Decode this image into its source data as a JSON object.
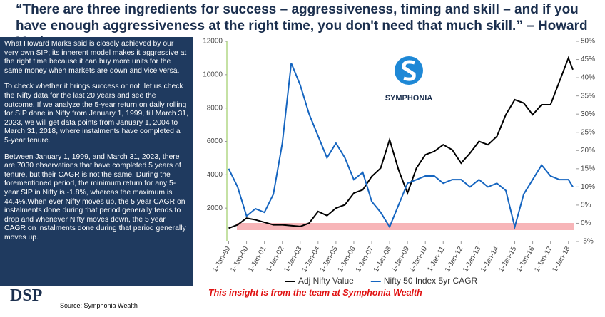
{
  "header": {
    "quote": "“There are three ingredients for success – aggressiveness, timing and skill – and if you have enough aggressiveness at the right time, you don't need that much skill.” – Howard Marks"
  },
  "left_panel": {
    "paragraphs": [
      "What Howard Marks said is closely achieved by our very own SIP; its inherent model makes it aggressive at the right time because it can buy more units for the same money when markets are down and vice versa.",
      "To check whether it brings success or not, let us check the Nifty data for the last 20 years and see the outcome. If we analyze the 5-year return on daily rolling for SIP done in Nifty from January 1, 1999, till March 31, 2023, we will get data points from January 1, 2004 to March 31, 2018, where instalments have completed a 5-year tenure.",
      "Between January 1, 1999, and March 31, 2023, there are 7030 observations that have completed 5 years of tenure, but their CAGR is not the same. During the forementioned period, the minimum return for any 5-year SIP in Nifty is -1.8%, whereas the maximum is 44.4%.When ever Nifty moves up, the 5 year CAGR on instalments done during that period generally tends to drop and whenever Nifty moves down, the 5 year CAGR on instalments done during that period generally moves up."
    ]
  },
  "chart_data": {
    "type": "line",
    "x": [
      1999,
      1999.5,
      2000,
      2000.5,
      2001,
      2001.5,
      2002,
      2002.5,
      2003,
      2003.5,
      2004,
      2004.5,
      2005,
      2005.5,
      2006,
      2006.5,
      2007,
      2007.5,
      2008,
      2008.5,
      2009,
      2009.5,
      2010,
      2010.5,
      2011,
      2011.5,
      2012,
      2012.5,
      2013,
      2013.5,
      2014,
      2014.5,
      2015,
      2015.5,
      2016,
      2016.5,
      2017,
      2017.5,
      2018,
      2018.25
    ],
    "series": [
      {
        "name": "Adj Nifty Value",
        "color": "#000000",
        "values": [
          800,
          1000,
          1400,
          1300,
          1150,
          1000,
          1000,
          950,
          900,
          1100,
          1800,
          1550,
          2000,
          2200,
          2900,
          3100,
          3900,
          4400,
          6100,
          4300,
          2900,
          4400,
          5200,
          5400,
          5800,
          5500,
          4700,
          5300,
          6000,
          5800,
          6300,
          7600,
          8500,
          8300,
          7600,
          8200,
          8200,
          9600,
          11000,
          10300
        ]
      },
      {
        "name": "Nifty 50 Index 5yr CAGR",
        "color": "#1565c0",
        "axis": "y2",
        "values": [
          15,
          10,
          2,
          4,
          3,
          8,
          22,
          44,
          38,
          30,
          24,
          18,
          22,
          18,
          12,
          14,
          6,
          3,
          -1,
          5,
          11,
          12,
          13,
          13,
          11,
          12,
          12,
          10,
          12,
          10,
          11,
          9,
          -1,
          8,
          12,
          16,
          13,
          12,
          12,
          10
        ]
      }
    ],
    "xlim": [
      1998.9,
      2018.45
    ],
    "xticks": [
      {
        "value": 1999,
        "label": "1-Jan-99"
      },
      {
        "value": 2000,
        "label": "1-Jan-00"
      },
      {
        "value": 2001,
        "label": "1-Jan-01"
      },
      {
        "value": 2002,
        "label": "1-Jan-02"
      },
      {
        "value": 2003,
        "label": "1-Jan-03"
      },
      {
        "value": 2004,
        "label": "1-Jan-04"
      },
      {
        "value": 2005,
        "label": "1-Jan-05"
      },
      {
        "value": 2006,
        "label": "1-Jan-06"
      },
      {
        "value": 2007,
        "label": "1-Jan-07"
      },
      {
        "value": 2008,
        "label": "1-Jan-08"
      },
      {
        "value": 2009,
        "label": "1-Jan-09"
      },
      {
        "value": 2010,
        "label": "1-Jan-10"
      },
      {
        "value": 2011,
        "label": "1-Jan-11"
      },
      {
        "value": 2012,
        "label": "1-Jan-12"
      },
      {
        "value": 2013,
        "label": "1-Jan-13"
      },
      {
        "value": 2014,
        "label": "1-Jan-14"
      },
      {
        "value": 2015,
        "label": "1-Jan-15"
      },
      {
        "value": 2016,
        "label": "1-Jan-16"
      },
      {
        "value": 2017,
        "label": "1-Jan-17"
      },
      {
        "value": 2018,
        "label": "1-Jan-18"
      }
    ],
    "ylim": [
      0,
      12000
    ],
    "yticks": [
      2000,
      4000,
      6000,
      8000,
      10000,
      12000
    ],
    "y2lim": [
      -5,
      50
    ],
    "y2ticks": [
      {
        "value": -5,
        "label": "-5%"
      },
      {
        "value": 0,
        "label": "0%"
      },
      {
        "value": 5,
        "label": "5%"
      },
      {
        "value": 10,
        "label": "10%"
      },
      {
        "value": 15,
        "label": "15%"
      },
      {
        "value": 20,
        "label": "20%"
      },
      {
        "value": 25,
        "label": "25%"
      },
      {
        "value": 30,
        "label": "30%"
      },
      {
        "value": 35,
        "label": "35%"
      },
      {
        "value": 40,
        "label": "40%"
      },
      {
        "value": 45,
        "label": "45%"
      },
      {
        "value": 50,
        "label": "50%"
      }
    ],
    "grid": false
  },
  "logo": {
    "text": "SYMPHONIA"
  },
  "note": "This insight is from the team at Symphonia Wealth",
  "footer": {
    "brand": "DSP",
    "source": "Source: Symphonia Wealth"
  }
}
